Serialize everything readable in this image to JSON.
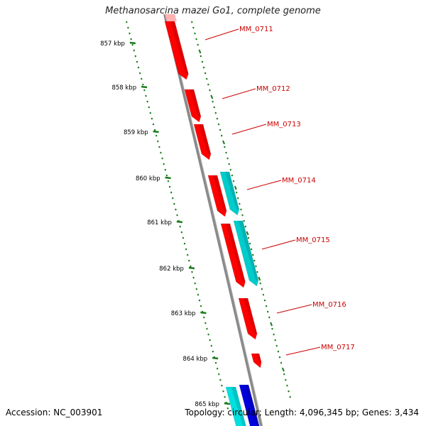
{
  "title": "Methanosarcina mazei Go1, complete genome",
  "accession_label": "Accession: NC_003901",
  "summary_label": "Topology: circular; Length: 4,096,345 bp; Genes: 3,434",
  "colors": {
    "backbone": "#8a8a8a",
    "tick": "#1a7a1a",
    "gene_forward": "#ff0000",
    "gene_reverse": "#00cccc",
    "gene_other_1": "#00e0e0",
    "gene_other_2": "#0000dd",
    "label": "#cc0000"
  },
  "scale_ticks": [
    "857 kbp",
    "858 kbp",
    "859 kbp",
    "860 kbp",
    "861 kbp",
    "862 kbp",
    "863 kbp",
    "864 kbp",
    "865 kbp"
  ],
  "genes": [
    {
      "name": "MM_0711",
      "color": "red"
    },
    {
      "name": "MM_0712",
      "color": "red"
    },
    {
      "name": "MM_0713",
      "color": "red"
    },
    {
      "name": "MM_0714",
      "color": "red"
    },
    {
      "name": "MM_0715",
      "color": "red"
    },
    {
      "name": "MM_0716",
      "color": "red"
    },
    {
      "name": "MM_0717",
      "color": "red"
    }
  ]
}
